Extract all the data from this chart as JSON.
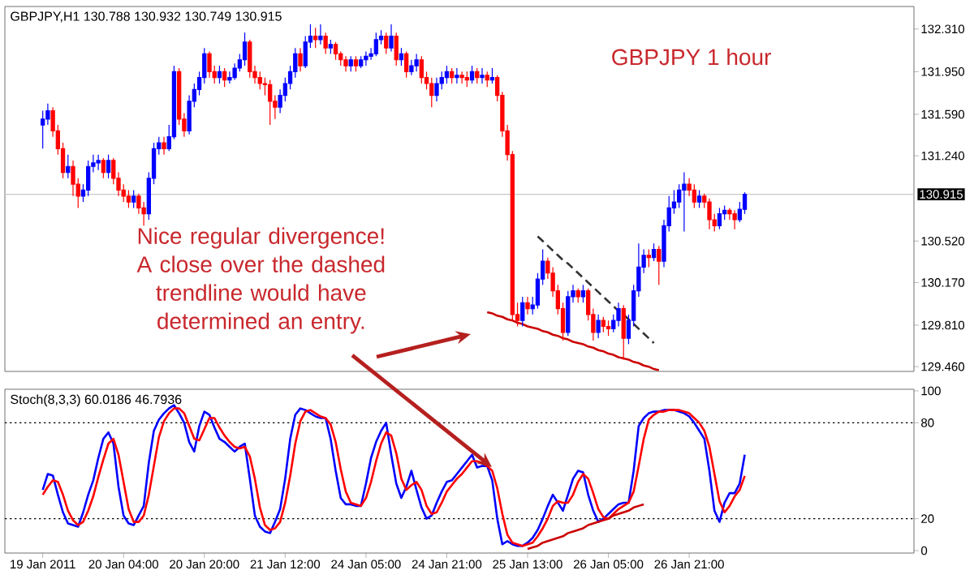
{
  "chart_data": [
    {
      "type": "candlestick",
      "title": "GBPJPY,H1 130.788 130.932 130.749 130.915",
      "categories": [
        null,
        null,
        null,
        null,
        null,
        null,
        null,
        null,
        null,
        null,
        null,
        null,
        null,
        null,
        null,
        null,
        null,
        null,
        null,
        null,
        null,
        null,
        null,
        null,
        null,
        null,
        null,
        null,
        null,
        null,
        null,
        null,
        null,
        null,
        null,
        null,
        null,
        null,
        null,
        null,
        null,
        null,
        null,
        null,
        null,
        null,
        null,
        null,
        null,
        null,
        null,
        null,
        null,
        null,
        null,
        null,
        null,
        null,
        null,
        null,
        null,
        null,
        null,
        null,
        null,
        null,
        null,
        null,
        null,
        null,
        null,
        null,
        null,
        null,
        null,
        null,
        null,
        null,
        null,
        null,
        null,
        null,
        null,
        null,
        null,
        null,
        null,
        null,
        null,
        null,
        null,
        null,
        null,
        null,
        null,
        null,
        null,
        null,
        null,
        null,
        null,
        null,
        null,
        null,
        null,
        null,
        null,
        null,
        null,
        null,
        null,
        null,
        null,
        null,
        null,
        null,
        null,
        null,
        null,
        null,
        null,
        null,
        null,
        null,
        null,
        null,
        null,
        null,
        null,
        null,
        null,
        null,
        null,
        null,
        null,
        null,
        null,
        null,
        null,
        null,
        null,
        null,
        null,
        null,
        null,
        null,
        null,
        null,
        null,
        null,
        null,
        null,
        null,
        null,
        null,
        null,
        null,
        null,
        null,
        null,
        null,
        null,
        null,
        null,
        null,
        null,
        null,
        null,
        null,
        null,
        null,
        null,
        null,
        null,
        null,
        null,
        null,
        null,
        null,
        null
      ],
      "ohlc": [
        null,
        null,
        null,
        null,
        null,
        null,
        null,
        [
          131.5,
          131.62,
          131.3,
          131.55
        ],
        [
          131.55,
          131.68,
          131.5,
          131.62
        ],
        [
          131.62,
          131.65,
          131.4,
          131.45
        ],
        [
          131.45,
          131.5,
          131.25,
          131.3
        ],
        [
          131.3,
          131.35,
          131.05,
          131.1
        ],
        [
          131.1,
          131.25,
          131.05,
          131.15
        ],
        [
          131.15,
          131.2,
          130.9,
          131.0
        ],
        [
          131.0,
          131.05,
          130.8,
          130.9
        ],
        [
          130.9,
          131.0,
          130.85,
          130.95
        ],
        [
          130.95,
          131.2,
          130.9,
          131.15
        ],
        [
          131.15,
          131.25,
          131.1,
          131.18
        ],
        [
          131.18,
          131.25,
          131.12,
          131.2
        ],
        [
          131.2,
          131.22,
          131.05,
          131.1
        ],
        [
          131.1,
          131.25,
          131.05,
          131.2
        ],
        [
          131.2,
          131.22,
          131.0,
          131.05
        ],
        [
          131.05,
          131.1,
          130.9,
          130.95
        ],
        [
          130.95,
          131.0,
          130.85,
          130.9
        ],
        [
          130.9,
          130.95,
          130.8,
          130.85
        ],
        [
          130.85,
          130.95,
          130.8,
          130.9
        ],
        [
          130.9,
          130.92,
          130.75,
          130.8
        ],
        [
          130.8,
          130.85,
          130.65,
          130.75
        ],
        [
          130.75,
          131.1,
          130.7,
          131.05
        ],
        [
          131.05,
          131.35,
          131.0,
          131.3
        ],
        [
          131.3,
          131.4,
          131.25,
          131.35
        ],
        [
          131.35,
          131.4,
          131.25,
          131.3
        ],
        [
          131.3,
          131.5,
          131.28,
          131.4
        ],
        [
          131.4,
          132.0,
          131.38,
          131.95
        ],
        [
          131.95,
          131.98,
          131.5,
          131.55
        ],
        [
          131.55,
          131.6,
          131.4,
          131.45
        ],
        [
          131.45,
          131.75,
          131.42,
          131.7
        ],
        [
          131.7,
          131.85,
          131.65,
          131.8
        ],
        [
          131.8,
          131.95,
          131.75,
          131.9
        ],
        [
          131.9,
          132.15,
          131.85,
          132.1
        ],
        [
          132.1,
          132.12,
          131.9,
          131.95
        ],
        [
          131.95,
          132.0,
          131.85,
          131.9
        ],
        [
          131.9,
          132.0,
          131.85,
          131.95
        ],
        [
          131.95,
          131.98,
          131.82,
          131.88
        ],
        [
          131.88,
          131.95,
          131.85,
          131.9
        ],
        [
          131.9,
          132.02,
          131.88,
          131.98
        ],
        [
          131.98,
          132.1,
          131.95,
          132.05
        ],
        [
          132.05,
          132.28,
          132.0,
          132.2
        ],
        [
          132.2,
          132.22,
          131.9,
          131.95
        ],
        [
          131.95,
          132.0,
          131.85,
          131.9
        ],
        [
          131.9,
          131.95,
          131.8,
          131.85
        ],
        [
          131.85,
          131.9,
          131.75,
          131.84
        ],
        [
          131.84,
          131.88,
          131.5,
          131.7
        ],
        [
          131.7,
          131.75,
          131.55,
          131.65
        ],
        [
          131.65,
          131.8,
          131.6,
          131.75
        ],
        [
          131.75,
          131.9,
          131.7,
          131.85
        ],
        [
          131.85,
          132.0,
          131.8,
          131.95
        ],
        [
          131.95,
          132.15,
          131.9,
          132.1
        ],
        [
          132.1,
          132.15,
          131.95,
          132.0
        ],
        [
          132.0,
          132.25,
          131.98,
          132.2
        ],
        [
          132.2,
          132.35,
          132.15,
          132.25
        ],
        [
          132.25,
          132.32,
          132.15,
          132.22
        ],
        [
          132.22,
          132.35,
          132.18,
          132.25
        ],
        [
          132.25,
          132.28,
          132.1,
          132.15
        ],
        [
          132.15,
          132.22,
          132.1,
          132.18
        ],
        [
          132.18,
          132.2,
          132.05,
          132.1
        ],
        [
          132.1,
          132.12,
          132.0,
          132.05
        ],
        [
          132.05,
          132.08,
          131.95,
          132.0
        ],
        [
          132.0,
          132.08,
          131.95,
          132.05
        ],
        [
          132.05,
          132.08,
          131.95,
          132.0
        ],
        [
          132.0,
          132.08,
          131.98,
          132.05
        ],
        [
          132.05,
          132.12,
          132.0,
          132.08
        ],
        [
          132.08,
          132.15,
          132.05,
          132.1
        ],
        [
          132.1,
          132.28,
          132.08,
          132.22
        ],
        [
          132.22,
          132.3,
          132.18,
          132.25
        ],
        [
          132.25,
          132.28,
          132.1,
          132.15
        ],
        [
          132.15,
          132.35,
          132.12,
          132.25
        ],
        [
          132.25,
          132.28,
          132.0,
          132.05
        ],
        [
          132.05,
          132.15,
          132.0,
          132.1
        ],
        [
          132.1,
          132.12,
          131.9,
          131.95
        ],
        [
          131.95,
          132.05,
          131.92,
          132.0
        ],
        [
          132.0,
          132.1,
          131.95,
          132.05
        ],
        [
          132.05,
          132.08,
          131.85,
          131.9
        ],
        [
          131.9,
          131.95,
          131.8,
          131.85
        ],
        [
          131.85,
          131.9,
          131.65,
          131.75
        ],
        [
          131.75,
          131.9,
          131.7,
          131.85
        ],
        [
          131.85,
          131.95,
          131.8,
          131.9
        ],
        [
          131.9,
          132.0,
          131.85,
          131.95
        ],
        [
          131.95,
          131.98,
          131.85,
          131.9
        ],
        [
          131.9,
          131.98,
          131.85,
          131.92
        ],
        [
          131.92,
          131.95,
          131.85,
          131.9
        ],
        [
          131.9,
          131.95,
          131.82,
          131.88
        ],
        [
          131.88,
          132.0,
          131.85,
          131.95
        ],
        [
          131.95,
          131.98,
          131.85,
          131.9
        ],
        [
          131.9,
          131.98,
          131.85,
          131.92
        ],
        [
          131.92,
          131.95,
          131.82,
          131.88
        ],
        [
          131.88,
          131.98,
          131.85,
          131.9
        ],
        [
          131.9,
          131.92,
          131.7,
          131.75
        ],
        [
          131.75,
          131.78,
          131.4,
          131.45
        ],
        [
          131.45,
          131.5,
          131.2,
          131.25
        ],
        [
          131.25,
          131.28,
          129.85,
          129.9
        ],
        [
          129.9,
          130.0,
          129.8,
          129.85
        ],
        [
          129.85,
          130.05,
          129.8,
          130.0
        ],
        [
          130.0,
          130.05,
          129.9,
          129.95
        ],
        [
          129.95,
          130.05,
          129.9,
          129.98
        ],
        [
          129.98,
          130.25,
          129.95,
          130.2
        ],
        [
          130.2,
          130.45,
          130.15,
          130.35
        ],
        [
          130.35,
          130.38,
          130.2,
          130.25
        ],
        [
          130.25,
          130.3,
          130.05,
          130.1
        ],
        [
          130.1,
          130.15,
          129.9,
          129.95
        ],
        [
          129.95,
          130.0,
          129.68,
          129.75
        ],
        [
          129.75,
          130.1,
          129.72,
          130.05
        ],
        [
          130.05,
          130.15,
          130.0,
          130.1
        ],
        [
          130.1,
          130.12,
          130.0,
          130.05
        ],
        [
          130.05,
          130.15,
          130.0,
          130.1
        ],
        [
          130.1,
          130.12,
          129.85,
          129.9
        ],
        [
          129.9,
          129.95,
          129.68,
          129.75
        ],
        [
          129.75,
          129.9,
          129.7,
          129.85
        ],
        [
          129.85,
          129.88,
          129.75,
          129.8
        ],
        [
          129.8,
          129.85,
          129.72,
          129.78
        ],
        [
          129.78,
          129.9,
          129.75,
          129.85
        ],
        [
          129.85,
          130.0,
          129.8,
          129.95
        ],
        [
          129.95,
          129.98,
          129.52,
          129.7
        ],
        [
          129.7,
          129.9,
          129.65,
          129.85
        ],
        [
          129.85,
          130.15,
          129.8,
          130.1
        ],
        [
          130.1,
          130.5,
          130.05,
          130.3
        ],
        [
          130.3,
          130.45,
          130.25,
          130.4
        ],
        [
          130.4,
          130.45,
          130.3,
          130.38
        ],
        [
          130.38,
          130.5,
          130.35,
          130.45
        ],
        [
          130.45,
          130.48,
          130.15,
          130.35
        ],
        [
          130.35,
          130.7,
          130.3,
          130.65
        ],
        [
          130.65,
          130.9,
          130.6,
          130.8
        ],
        [
          130.8,
          130.95,
          130.75,
          130.85
        ],
        [
          130.85,
          131.0,
          130.8,
          130.95
        ],
        [
          130.95,
          131.1,
          130.6,
          131.0
        ],
        [
          131.0,
          131.05,
          130.9,
          130.95
        ],
        [
          130.95,
          131.0,
          130.8,
          130.85
        ],
        [
          130.85,
          130.95,
          130.8,
          130.9
        ],
        [
          130.9,
          130.92,
          130.8,
          130.85
        ],
        [
          130.85,
          130.88,
          130.62,
          130.7
        ],
        [
          130.7,
          130.75,
          130.6,
          130.65
        ],
        [
          130.65,
          130.8,
          130.62,
          130.75
        ],
        [
          130.75,
          130.82,
          130.7,
          130.78
        ],
        [
          130.78,
          130.8,
          130.7,
          130.75
        ],
        [
          130.75,
          130.78,
          130.62,
          130.7
        ],
        [
          130.7,
          130.85,
          130.68,
          130.788
        ],
        [
          130.788,
          130.932,
          130.749,
          130.915
        ],
        null,
        null,
        null,
        null,
        null,
        null,
        null,
        null,
        null,
        null,
        null,
        null,
        null,
        null,
        null,
        null,
        null,
        null,
        null,
        null,
        null,
        null,
        null,
        null,
        null,
        null,
        null,
        null,
        null,
        null,
        null,
        null,
        null
      ],
      "colors": [
        null,
        null,
        null,
        null,
        null,
        null,
        null,
        "#0000ff",
        "#0000ff",
        "#ff0000",
        "#ff0000",
        "#ff0000",
        "#0000ff",
        "#ff0000",
        "#ff0000",
        "#0000ff",
        "#0000ff",
        "#0000ff",
        "#0000ff",
        "#ff0000",
        "#0000ff",
        "#ff0000",
        "#ff0000",
        "#ff0000",
        "#ff0000",
        "#0000ff",
        "#ff0000",
        "#ff0000",
        "#0000ff",
        "#0000ff",
        "#0000ff",
        "#ff0000",
        "#0000ff",
        "#0000ff",
        "#ff0000",
        "#ff0000",
        "#0000ff",
        "#0000ff",
        "#0000ff",
        "#0000ff",
        "#ff0000",
        "#ff0000",
        "#0000ff",
        "#ff0000",
        "#0000ff",
        "#0000ff",
        "#0000ff",
        "#0000ff",
        "#ff0000",
        "#ff0000",
        "#ff0000",
        "#ff0000",
        "#ff0000",
        "#ff0000",
        "#0000ff",
        "#0000ff",
        "#0000ff",
        "#0000ff",
        "#ff0000",
        "#0000ff",
        "#0000ff",
        "#ff0000",
        "#0000ff",
        "#ff0000",
        "#0000ff",
        "#ff0000",
        "#ff0000",
        "#ff0000",
        "#0000ff",
        "#ff0000",
        "#0000ff",
        "#0000ff",
        "#0000ff",
        "#0000ff",
        "#0000ff",
        "#ff0000",
        "#0000ff",
        "#ff0000",
        "#0000ff",
        "#ff0000",
        "#0000ff",
        "#0000ff",
        "#ff0000",
        "#ff0000",
        "#ff0000",
        "#0000ff",
        "#0000ff",
        "#0000ff",
        "#ff0000",
        "#0000ff",
        "#ff0000",
        "#ff0000",
        "#0000ff",
        "#ff0000",
        "#0000ff",
        "#ff0000",
        "#0000ff",
        "#ff0000",
        "#ff0000",
        "#ff0000",
        "#ff0000",
        "#ff0000",
        "#0000ff",
        "#ff0000",
        "#0000ff",
        "#0000ff",
        "#0000ff",
        "#ff0000",
        "#ff0000",
        "#ff0000",
        "#ff0000",
        "#0000ff",
        "#0000ff",
        "#ff0000",
        "#0000ff",
        "#ff0000",
        "#ff0000",
        "#0000ff",
        "#ff0000",
        "#ff0000",
        "#0000ff",
        "#0000ff",
        "#ff0000",
        "#0000ff",
        "#0000ff",
        "#0000ff",
        "#0000ff",
        "#ff0000",
        "#0000ff",
        "#ff0000",
        "#0000ff",
        "#0000ff",
        "#0000ff",
        "#0000ff",
        "#0000ff",
        "#ff0000",
        "#ff0000",
        "#0000ff",
        "#ff0000",
        "#ff0000",
        "#ff0000",
        "#0000ff",
        "#0000ff",
        "#ff0000",
        "#ff0000",
        "#0000ff",
        "#0000ff",
        null,
        null,
        null,
        null,
        null,
        null,
        null,
        null,
        null,
        null,
        null,
        null,
        null,
        null,
        null,
        null,
        null,
        null,
        null,
        null,
        null,
        null,
        null,
        null,
        null,
        null,
        null,
        null,
        null,
        null,
        null,
        null,
        null
      ],
      "series": [
        {
          "type": "line",
          "color": "#cc0000",
          "values": [
            null,
            null,
            null,
            null,
            null,
            null,
            null,
            null,
            null,
            null,
            null,
            null,
            null,
            null,
            null,
            null,
            null,
            null,
            null,
            null,
            null,
            null,
            null,
            null,
            null,
            null,
            null,
            null,
            null,
            null,
            null,
            null,
            null,
            null,
            null,
            null,
            null,
            null,
            null,
            null,
            null,
            null,
            null,
            null,
            null,
            null,
            null,
            null,
            null,
            null,
            null,
            null,
            null,
            null,
            null,
            null,
            null,
            null,
            null,
            null,
            null,
            null,
            null,
            null,
            null,
            null,
            null,
            null,
            null,
            null,
            null,
            null,
            null,
            null,
            null,
            null,
            null,
            null,
            null,
            null,
            null,
            null,
            null,
            null,
            null,
            null,
            null,
            null,
            null,
            null,
            null,
            null,
            null,
            null,
            null,
            129.92,
            129.91,
            129.89,
            129.88,
            129.86,
            129.85,
            129.83,
            129.82,
            129.8,
            129.79,
            129.78,
            129.76,
            129.75,
            129.73,
            129.72,
            129.7,
            129.69,
            129.67,
            129.66,
            129.65,
            129.63,
            129.62,
            129.6,
            129.59,
            129.57,
            129.56,
            129.54,
            129.53,
            129.52,
            129.5,
            129.49,
            129.47,
            129.46,
            129.44,
            129.43,
            null,
            null,
            null,
            null,
            null,
            null,
            null,
            null,
            null,
            null,
            null,
            null,
            null,
            null,
            null,
            null,
            null,
            null,
            null,
            null,
            null,
            null,
            null,
            null,
            null,
            null,
            null,
            null,
            null,
            null,
            null,
            null,
            null,
            null,
            null,
            null,
            null,
            null,
            null,
            null,
            null,
            null,
            null,
            null,
            null,
            null,
            null,
            null,
            null,
            null
          ]
        },
        {
          "type": "line",
          "color": "#333333",
          "line_style": "dashed",
          "values": [
            null,
            null,
            null,
            null,
            null,
            null,
            null,
            null,
            null,
            null,
            null,
            null,
            null,
            null,
            null,
            null,
            null,
            null,
            null,
            null,
            null,
            null,
            null,
            null,
            null,
            null,
            null,
            null,
            null,
            null,
            null,
            null,
            null,
            null,
            null,
            null,
            null,
            null,
            null,
            null,
            null,
            null,
            null,
            null,
            null,
            null,
            null,
            null,
            null,
            null,
            null,
            null,
            null,
            null,
            null,
            null,
            null,
            null,
            null,
            null,
            null,
            null,
            null,
            null,
            null,
            null,
            null,
            null,
            null,
            null,
            null,
            null,
            null,
            null,
            null,
            null,
            null,
            null,
            null,
            null,
            null,
            null,
            null,
            null,
            null,
            null,
            null,
            null,
            null,
            null,
            null,
            null,
            null,
            null,
            null,
            null,
            null,
            null,
            null,
            null,
            null,
            null,
            null,
            null,
            null,
            130.56,
            130.52,
            130.48,
            130.44,
            130.4,
            130.36,
            130.33,
            130.29,
            130.25,
            130.21,
            130.17,
            130.13,
            130.09,
            130.05,
            130.01,
            129.97,
            129.93,
            129.9,
            129.86,
            129.82,
            129.78,
            129.74,
            129.7,
            129.66,
            null,
            null,
            null,
            null,
            null,
            null,
            null,
            null,
            null,
            null,
            null,
            null,
            null,
            null,
            null,
            null,
            null,
            null,
            null,
            null,
            null,
            null,
            null,
            null,
            null,
            null,
            null,
            null,
            null,
            null,
            null,
            null,
            null,
            null,
            null,
            null,
            null,
            null,
            null,
            null,
            null,
            null,
            null,
            null,
            null,
            null,
            null,
            null,
            null,
            null,
            null
          ]
        }
      ],
      "ylim": [
        129.42,
        132.5
      ],
      "yticks": [
        {
          "value": 129.46,
          "label": "129.460"
        },
        {
          "value": 129.81,
          "label": "129.810"
        },
        {
          "value": 130.17,
          "label": "130.170"
        },
        {
          "value": 130.52,
          "label": "130.520"
        },
        {
          "value": 131.24,
          "label": "131.240"
        },
        {
          "value": 131.59,
          "label": "131.590"
        },
        {
          "value": 131.95,
          "label": "131.950"
        },
        {
          "value": 132.31,
          "label": "132.310"
        }
      ],
      "tick_labels": "y",
      "ref_lines": [
        {
          "axis": "y",
          "value": 130.915,
          "label": "130.915",
          "color": "#c8c8c8"
        }
      ],
      "annotations": [
        "GBPJPY 1 hour",
        "Nice regular divergence! A close over the dashed trendline would have determined an entry."
      ]
    },
    {
      "type": "line",
      "title": "Stoch(8,3,3) 60.0186 46.7936",
      "categories": [
        null,
        null,
        null,
        null,
        null,
        null,
        null,
        "19 Jan 2011",
        null,
        null,
        null,
        null,
        null,
        null,
        null,
        null,
        null,
        null,
        null,
        null,
        null,
        null,
        null,
        "20 Jan 04:00",
        null,
        null,
        null,
        null,
        null,
        null,
        null,
        null,
        null,
        null,
        null,
        null,
        null,
        null,
        null,
        "20 Jan 20:00",
        null,
        null,
        null,
        null,
        null,
        null,
        null,
        null,
        null,
        null,
        null,
        null,
        null,
        null,
        null,
        "21 Jan 12:00",
        null,
        null,
        null,
        null,
        null,
        null,
        null,
        null,
        null,
        null,
        null,
        null,
        null,
        null,
        null,
        "24 Jan 05:00",
        null,
        null,
        null,
        null,
        null,
        null,
        null,
        null,
        null,
        null,
        null,
        null,
        null,
        null,
        null,
        "24 Jan 21:00",
        null,
        null,
        null,
        null,
        null,
        null,
        null,
        null,
        null,
        null,
        null,
        null,
        null,
        null,
        null,
        "25 Jan 13:00",
        null,
        null,
        null,
        null,
        null,
        null,
        null,
        null,
        null,
        null,
        null,
        null,
        null,
        null,
        null,
        "26 Jan 05:00",
        null,
        null,
        null,
        null,
        null,
        null,
        null,
        null,
        null,
        null,
        null,
        null,
        null,
        null,
        null,
        "26 Jan 21:00",
        null,
        null,
        null,
        null,
        null,
        null,
        null,
        null,
        null,
        null,
        null,
        null,
        null,
        null,
        null,
        null,
        null,
        null,
        null,
        null,
        null,
        null,
        null,
        null,
        null,
        null,
        null,
        null,
        null,
        null,
        null,
        null,
        null,
        null,
        null,
        null,
        null,
        null,
        null,
        null,
        null,
        null,
        null,
        null
      ],
      "series": [
        {
          "color": "#0000ff",
          "values": [
            null,
            null,
            null,
            null,
            null,
            null,
            null,
            38,
            48,
            47,
            35,
            24,
            17,
            16,
            15,
            24,
            35,
            44,
            58,
            70,
            74,
            67,
            40,
            22,
            17,
            16,
            22,
            28,
            55,
            75,
            82,
            86,
            89,
            91,
            86,
            80,
            68,
            62,
            78,
            87,
            85,
            77,
            70,
            68,
            65,
            62,
            65,
            67,
            45,
            22,
            15,
            12,
            11,
            18,
            26,
            45,
            70,
            85,
            89,
            88,
            86,
            84,
            83,
            83,
            70,
            50,
            33,
            29,
            29,
            28,
            28,
            42,
            58,
            68,
            75,
            80,
            60,
            42,
            33,
            40,
            50,
            38,
            27,
            20,
            22,
            30,
            37,
            43,
            44,
            48,
            52,
            56,
            60,
            52,
            53,
            53,
            44,
            20,
            4,
            6,
            4,
            3,
            3,
            5,
            8,
            13,
            20,
            28,
            35,
            30,
            25,
            35,
            45,
            50,
            49,
            35,
            25,
            18,
            20,
            23,
            26,
            29,
            30,
            30,
            50,
            78,
            83,
            86,
            87,
            87,
            88,
            88,
            88,
            87,
            86,
            84,
            80,
            75,
            70,
            50,
            25,
            18,
            30,
            36,
            36,
            42,
            60.0186,
            null,
            null,
            null,
            null,
            null,
            null,
            null,
            null,
            null,
            null,
            null,
            null,
            null,
            null,
            null,
            null,
            null,
            null,
            null,
            null,
            null,
            null,
            null,
            null,
            null,
            null,
            null,
            null,
            null,
            null,
            null,
            null,
            null
          ]
        },
        {
          "color": "#ff0000",
          "values": [
            null,
            null,
            null,
            null,
            null,
            null,
            null,
            35,
            40,
            44,
            43,
            35,
            25,
            19,
            16,
            18,
            25,
            34,
            46,
            57,
            67,
            70,
            60,
            43,
            26,
            18,
            18,
            22,
            35,
            53,
            71,
            81,
            86,
            89,
            89,
            86,
            78,
            70,
            69,
            76,
            83,
            83,
            77,
            72,
            68,
            65,
            64,
            65,
            59,
            45,
            27,
            16,
            13,
            14,
            18,
            30,
            47,
            67,
            81,
            87,
            88,
            86,
            84,
            83,
            79,
            68,
            51,
            37,
            30,
            29,
            28,
            33,
            43,
            56,
            67,
            74,
            72,
            61,
            45,
            38,
            41,
            43,
            38,
            28,
            23,
            24,
            30,
            37,
            41,
            45,
            48,
            52,
            56,
            56,
            55,
            53,
            50,
            39,
            23,
            10,
            5,
            4,
            3,
            4,
            5,
            9,
            14,
            20,
            28,
            31,
            30,
            30,
            35,
            43,
            48,
            45,
            36,
            26,
            21,
            20,
            23,
            26,
            28,
            30,
            37,
            53,
            70,
            82,
            85,
            87,
            87,
            88,
            88,
            88,
            87,
            86,
            83,
            80,
            75,
            65,
            48,
            31,
            24,
            28,
            34,
            38,
            46.7936,
            null,
            null,
            null,
            null,
            null,
            null,
            null,
            null,
            null,
            null,
            null,
            null,
            null,
            null,
            null,
            null,
            null,
            null,
            null,
            null,
            null,
            null,
            null,
            null,
            null,
            null,
            null,
            null,
            null,
            null,
            null,
            null,
            null
          ]
        },
        {
          "type": "line",
          "color": "#cc0000",
          "values": [
            null,
            null,
            null,
            null,
            null,
            null,
            null,
            null,
            null,
            null,
            null,
            null,
            null,
            null,
            null,
            null,
            null,
            null,
            null,
            null,
            null,
            null,
            null,
            null,
            null,
            null,
            null,
            null,
            null,
            null,
            null,
            null,
            null,
            null,
            null,
            null,
            null,
            null,
            null,
            null,
            null,
            null,
            null,
            null,
            null,
            null,
            null,
            null,
            null,
            null,
            null,
            null,
            null,
            null,
            null,
            null,
            null,
            null,
            null,
            null,
            null,
            null,
            null,
            null,
            null,
            null,
            null,
            null,
            null,
            null,
            null,
            null,
            null,
            null,
            null,
            null,
            null,
            null,
            null,
            null,
            null,
            null,
            null,
            null,
            null,
            null,
            null,
            null,
            null,
            null,
            null,
            null,
            null,
            null,
            null,
            null,
            null,
            null,
            null,
            null,
            null,
            null,
            null,
            1,
            2,
            3,
            5,
            6,
            7,
            8,
            9,
            11,
            12,
            13,
            14,
            16,
            17,
            18,
            19,
            20,
            22,
            23,
            24,
            25,
            27,
            28,
            29,
            null,
            null,
            null,
            null,
            null,
            null,
            null,
            null,
            null,
            null,
            null,
            null,
            null,
            null,
            null,
            null,
            null,
            null,
            null,
            null,
            null,
            null,
            null,
            null,
            null,
            null,
            null,
            null,
            null,
            null,
            null,
            null,
            null,
            null,
            null,
            null,
            null,
            null,
            null,
            null,
            null,
            null,
            null,
            null,
            null,
            null,
            null,
            null,
            null,
            null,
            null,
            null,
            null
          ]
        }
      ],
      "ylim": [
        -1.5,
        101
      ],
      "yticks": [
        0,
        20,
        80,
        100
      ],
      "ref_lines": [
        {
          "axis": "y",
          "value": 20,
          "color": "#000000",
          "line_style": "dotted"
        },
        {
          "axis": "y",
          "value": 80,
          "color": "#000000",
          "line_style": "dotted"
        }
      ]
    }
  ]
}
